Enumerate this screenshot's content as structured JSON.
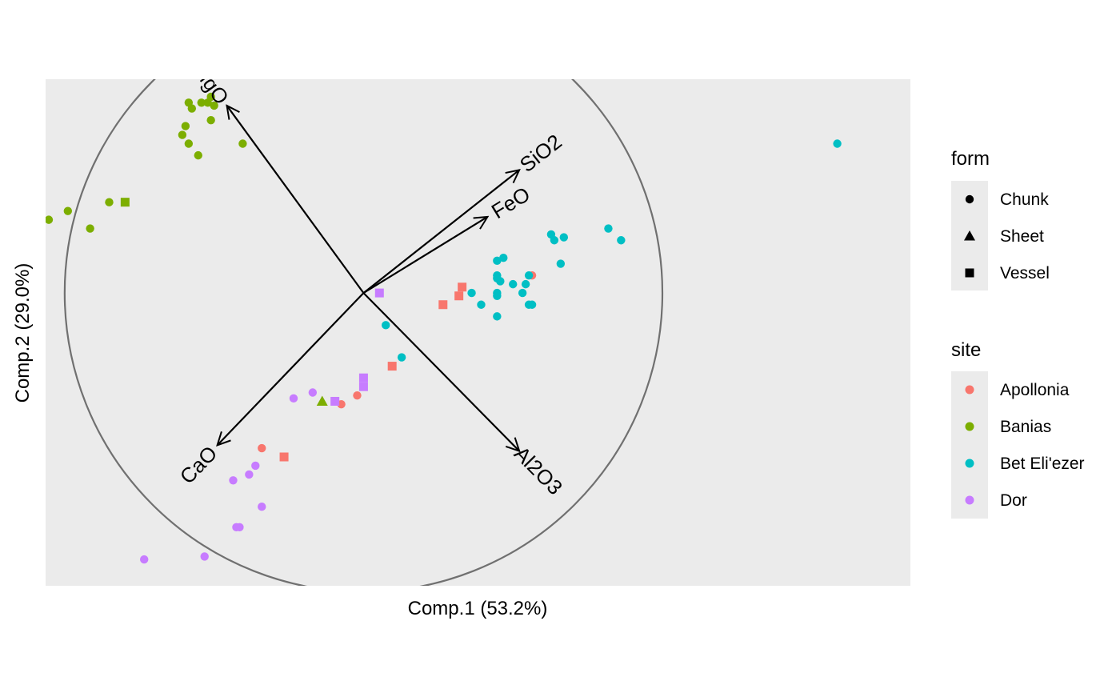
{
  "chart_data": {
    "type": "scatter",
    "subtype": "pca-biplot",
    "xlabel": "Comp.1 (53.2%)",
    "ylabel": "Comp.2 (29.0%)",
    "xlim": [
      -1.0,
      1.72
    ],
    "ylim": [
      -1.0,
      0.73
    ],
    "grid": false,
    "legend_placement": "right",
    "panel_color": "#ebebeb",
    "circle": {
      "center": [
        0,
        0
      ],
      "radius": 0.94,
      "color": "#707070"
    },
    "legends": {
      "form": {
        "title": "form",
        "items": [
          {
            "label": "Chunk",
            "shape": "circle"
          },
          {
            "label": "Sheet",
            "shape": "triangle"
          },
          {
            "label": "Vessel",
            "shape": "square"
          }
        ]
      },
      "site": {
        "title": "site",
        "items": [
          {
            "label": "Apollonia",
            "color": "#F8766D"
          },
          {
            "label": "Banias",
            "color": "#7CAE00"
          },
          {
            "label": "Bet Eli'ezer",
            "color": "#00BFC4"
          },
          {
            "label": "Dor",
            "color": "#C77CFF"
          }
        ]
      }
    },
    "arrows": [
      {
        "label": "MgO",
        "x": -0.43,
        "y": 0.64
      },
      {
        "label": "SiO2",
        "x": 0.49,
        "y": 0.42
      },
      {
        "label": "FeO",
        "x": 0.39,
        "y": 0.26
      },
      {
        "label": "CaO",
        "x": -0.46,
        "y": -0.52
      },
      {
        "label": "Al2O3",
        "x": 0.49,
        "y": -0.54
      }
    ],
    "series": [
      {
        "name": "Apollonia",
        "points": [
          {
            "x": 0.53,
            "y": 0.06,
            "form": "Chunk"
          },
          {
            "x": -0.07,
            "y": -0.38,
            "form": "Chunk"
          },
          {
            "x": -0.02,
            "y": -0.35,
            "form": "Chunk"
          },
          {
            "x": -0.32,
            "y": -0.53,
            "form": "Chunk"
          },
          {
            "x": 0.31,
            "y": 0.02,
            "form": "Vessel"
          },
          {
            "x": 0.3,
            "y": -0.01,
            "form": "Vessel"
          },
          {
            "x": 0.25,
            "y": -0.04,
            "form": "Vessel"
          },
          {
            "x": 0.09,
            "y": -0.25,
            "form": "Vessel"
          },
          {
            "x": -0.25,
            "y": -0.56,
            "form": "Vessel"
          }
        ]
      },
      {
        "name": "Banias",
        "points": [
          {
            "x": -0.48,
            "y": 0.67,
            "form": "Chunk"
          },
          {
            "x": -0.55,
            "y": 0.65,
            "form": "Chunk"
          },
          {
            "x": -0.49,
            "y": 0.65,
            "form": "Chunk"
          },
          {
            "x": -0.51,
            "y": 0.65,
            "form": "Chunk"
          },
          {
            "x": -0.54,
            "y": 0.63,
            "form": "Chunk"
          },
          {
            "x": -0.47,
            "y": 0.64,
            "form": "Chunk"
          },
          {
            "x": -0.48,
            "y": 0.59,
            "form": "Chunk"
          },
          {
            "x": -0.56,
            "y": 0.57,
            "form": "Chunk"
          },
          {
            "x": -0.57,
            "y": 0.54,
            "form": "Chunk"
          },
          {
            "x": -0.55,
            "y": 0.51,
            "form": "Chunk"
          },
          {
            "x": -0.52,
            "y": 0.47,
            "form": "Chunk"
          },
          {
            "x": -0.38,
            "y": 0.51,
            "form": "Chunk"
          },
          {
            "x": -0.8,
            "y": 0.31,
            "form": "Chunk"
          },
          {
            "x": -0.93,
            "y": 0.28,
            "form": "Chunk"
          },
          {
            "x": -0.99,
            "y": 0.25,
            "form": "Chunk"
          },
          {
            "x": -0.86,
            "y": 0.22,
            "form": "Chunk"
          },
          {
            "x": -0.75,
            "y": 0.31,
            "form": "Vessel"
          },
          {
            "x": -0.13,
            "y": -0.37,
            "form": "Sheet"
          }
        ]
      },
      {
        "name": "Bet Eli'ezer",
        "points": [
          {
            "x": 1.49,
            "y": 0.51,
            "form": "Chunk"
          },
          {
            "x": 0.77,
            "y": 0.22,
            "form": "Chunk"
          },
          {
            "x": 0.81,
            "y": 0.18,
            "form": "Chunk"
          },
          {
            "x": 0.59,
            "y": 0.2,
            "form": "Chunk"
          },
          {
            "x": 0.63,
            "y": 0.19,
            "form": "Chunk"
          },
          {
            "x": 0.6,
            "y": 0.18,
            "form": "Chunk"
          },
          {
            "x": 0.62,
            "y": 0.1,
            "form": "Chunk"
          },
          {
            "x": 0.44,
            "y": 0.12,
            "form": "Chunk"
          },
          {
            "x": 0.42,
            "y": 0.11,
            "form": "Chunk"
          },
          {
            "x": 0.52,
            "y": 0.06,
            "form": "Chunk"
          },
          {
            "x": 0.42,
            "y": 0.06,
            "form": "Chunk"
          },
          {
            "x": 0.42,
            "y": 0.05,
            "form": "Chunk"
          },
          {
            "x": 0.51,
            "y": 0.03,
            "form": "Chunk"
          },
          {
            "x": 0.47,
            "y": 0.03,
            "form": "Chunk"
          },
          {
            "x": 0.43,
            "y": 0.04,
            "form": "Chunk"
          },
          {
            "x": 0.34,
            "y": 0.0,
            "form": "Chunk"
          },
          {
            "x": 0.5,
            "y": 0.0,
            "form": "Chunk"
          },
          {
            "x": 0.42,
            "y": 0.0,
            "form": "Chunk"
          },
          {
            "x": 0.42,
            "y": -0.01,
            "form": "Chunk"
          },
          {
            "x": 0.37,
            "y": -0.04,
            "form": "Chunk"
          },
          {
            "x": 0.52,
            "y": -0.04,
            "form": "Chunk"
          },
          {
            "x": 0.53,
            "y": -0.04,
            "form": "Chunk"
          },
          {
            "x": 0.42,
            "y": -0.08,
            "form": "Chunk"
          },
          {
            "x": 0.07,
            "y": -0.11,
            "form": "Chunk"
          },
          {
            "x": 0.12,
            "y": -0.22,
            "form": "Chunk"
          }
        ]
      },
      {
        "name": "Dor",
        "points": [
          {
            "x": 0.05,
            "y": 0.0,
            "form": "Vessel"
          },
          {
            "x": 0.0,
            "y": -0.29,
            "form": "Vessel"
          },
          {
            "x": 0.0,
            "y": -0.32,
            "form": "Vessel"
          },
          {
            "x": -0.09,
            "y": -0.37,
            "form": "Vessel"
          },
          {
            "x": -0.16,
            "y": -0.34,
            "form": "Chunk"
          },
          {
            "x": -0.22,
            "y": -0.36,
            "form": "Chunk"
          },
          {
            "x": -0.34,
            "y": -0.59,
            "form": "Chunk"
          },
          {
            "x": -0.36,
            "y": -0.62,
            "form": "Chunk"
          },
          {
            "x": -0.41,
            "y": -0.64,
            "form": "Chunk"
          },
          {
            "x": -0.32,
            "y": -0.73,
            "form": "Chunk"
          },
          {
            "x": -0.39,
            "y": -0.8,
            "form": "Chunk"
          },
          {
            "x": -0.4,
            "y": -0.8,
            "form": "Chunk"
          },
          {
            "x": -0.69,
            "y": -0.91,
            "form": "Chunk"
          },
          {
            "x": -0.5,
            "y": -0.9,
            "form": "Chunk"
          }
        ]
      }
    ]
  }
}
